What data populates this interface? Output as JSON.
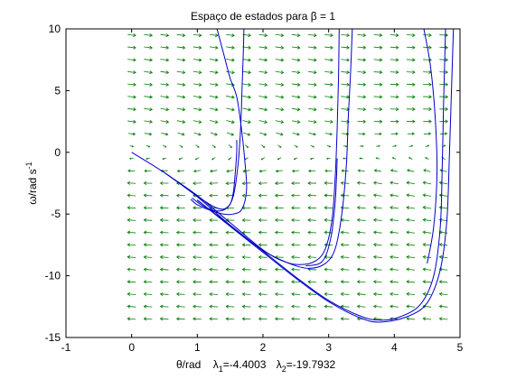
{
  "chart_data": {
    "type": "line",
    "title": "Espaço de estados para β = 1",
    "xlabel": "θ/rad",
    "ylabel": {
      "base": "ω/rad s",
      "sup": "-1"
    },
    "eigen_annotation": [
      {
        "symbol": "λ",
        "sub": "1",
        "value": "=-4.4003"
      },
      {
        "symbol": "λ",
        "sub": "2",
        "value": "=-19.7932"
      }
    ],
    "xlim": [
      -1,
      5
    ],
    "ylim": [
      -15,
      10
    ],
    "xticks": [
      -1,
      0,
      1,
      2,
      3,
      4,
      5
    ],
    "yticks": [
      -15,
      -10,
      -5,
      0,
      5,
      10
    ],
    "grid": false,
    "colors": {
      "trajectory": "#0000c8",
      "vector_field": "#007f00",
      "axes": "#000000"
    },
    "vector_field": {
      "x_range": [
        0,
        4.75
      ],
      "x_step": 0.25,
      "y_range": [
        -13.5,
        9.5
      ],
      "y_step": 1,
      "beta": 1,
      "eigenvalues": [
        -4.4003,
        -19.7932
      ]
    },
    "series": [
      {
        "points": [
          [
            0,
            0
          ],
          [
            0.5,
            -1.65
          ],
          [
            1.0,
            -3.55
          ],
          [
            1.25,
            -4.4
          ],
          [
            1.4,
            -4.6
          ],
          [
            1.5,
            -4.2
          ],
          [
            1.55,
            -3.2
          ],
          [
            1.58,
            -1.5
          ],
          [
            1.6,
            0
          ],
          [
            1.6,
            1.0
          ]
        ]
      },
      {
        "points": [
          [
            0.92,
            -3.7
          ],
          [
            1.1,
            -4.4
          ],
          [
            1.3,
            -4.75
          ],
          [
            1.45,
            -4.5
          ],
          [
            1.55,
            -3.5
          ],
          [
            1.62,
            -1.0
          ],
          [
            1.66,
            2.0
          ],
          [
            1.68,
            5.0
          ],
          [
            1.7,
            8.0
          ],
          [
            1.71,
            10
          ]
        ]
      },
      {
        "points": [
          [
            1.3,
            10
          ],
          [
            1.4,
            8.0
          ],
          [
            1.5,
            6.0
          ],
          [
            1.6,
            4.5
          ],
          [
            1.67,
            2.0
          ],
          [
            1.72,
            -0.5
          ],
          [
            1.75,
            -3.0
          ],
          [
            1.68,
            -4.6
          ],
          [
            1.55,
            -5.0
          ],
          [
            1.4,
            -5.0
          ],
          [
            1.2,
            -4.7
          ],
          [
            1.0,
            -4.25
          ],
          [
            0.9,
            -3.8
          ]
        ]
      },
      {
        "points": [
          [
            0.5,
            -1.65
          ],
          [
            1.0,
            -3.5
          ],
          [
            1.5,
            -5.7
          ],
          [
            2.0,
            -7.9
          ],
          [
            2.3,
            -8.8
          ],
          [
            2.55,
            -9.1
          ],
          [
            2.8,
            -8.8
          ],
          [
            2.95,
            -7.8
          ],
          [
            3.05,
            -5.5
          ],
          [
            3.1,
            -2.0
          ],
          [
            3.13,
            2.0
          ],
          [
            3.15,
            6.0
          ],
          [
            3.16,
            10
          ]
        ]
      },
      {
        "points": [
          [
            1.0,
            -3.9
          ],
          [
            1.5,
            -5.9
          ],
          [
            2.0,
            -7.95
          ],
          [
            2.4,
            -9.0
          ],
          [
            2.7,
            -9.4
          ],
          [
            2.95,
            -9.0
          ],
          [
            3.1,
            -7.8
          ],
          [
            3.2,
            -5.0
          ],
          [
            3.27,
            -1.0
          ],
          [
            3.3,
            3.0
          ],
          [
            3.33,
            6.0
          ],
          [
            3.36,
            10
          ]
        ]
      },
      {
        "points": [
          [
            2.65,
            -9.2
          ],
          [
            2.9,
            -8.85
          ],
          [
            3.03,
            -7.0
          ],
          [
            3.1,
            -4.0
          ],
          [
            3.13,
            -0.5
          ]
        ]
      },
      {
        "points": [
          [
            0.5,
            -1.65
          ],
          [
            1.0,
            -3.6
          ],
          [
            1.5,
            -5.9
          ],
          [
            2.0,
            -8.0
          ],
          [
            2.5,
            -10.1
          ],
          [
            3.0,
            -12.0
          ],
          [
            3.5,
            -13.3
          ],
          [
            3.8,
            -13.6
          ],
          [
            4.1,
            -13.3
          ],
          [
            4.4,
            -12.3
          ],
          [
            4.6,
            -10.0
          ],
          [
            4.7,
            -6.0
          ],
          [
            4.73,
            -1.0
          ],
          [
            4.75,
            4.0
          ],
          [
            4.78,
            10
          ]
        ]
      },
      {
        "points": [
          [
            1.0,
            -3.85
          ],
          [
            1.5,
            -6.0
          ],
          [
            2.0,
            -8.1
          ],
          [
            2.5,
            -10.2
          ],
          [
            3.0,
            -12.1
          ],
          [
            3.5,
            -13.45
          ],
          [
            3.8,
            -13.75
          ],
          [
            4.2,
            -13.3
          ],
          [
            4.5,
            -12.2
          ],
          [
            4.7,
            -9.5
          ],
          [
            4.8,
            -5.5
          ],
          [
            4.84,
            0.0
          ],
          [
            4.87,
            5.0
          ],
          [
            4.9,
            10
          ]
        ]
      },
      {
        "points": [
          [
            4.45,
            10
          ],
          [
            4.55,
            7.0
          ],
          [
            4.62,
            3.0
          ],
          [
            4.65,
            -1.5
          ],
          [
            4.6,
            -6.0
          ],
          [
            4.5,
            -9.0
          ]
        ]
      }
    ]
  }
}
